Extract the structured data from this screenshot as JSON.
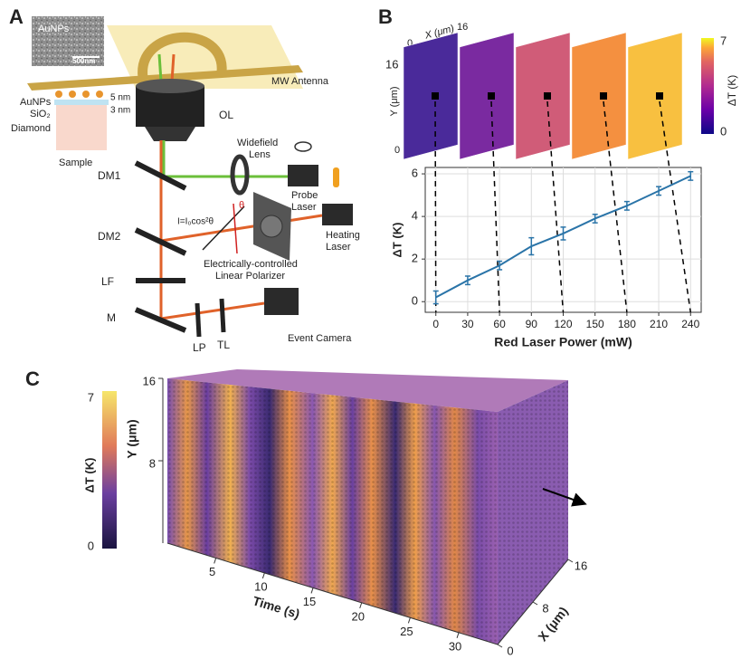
{
  "panel_a": {
    "label": "A",
    "sem_title": "AuNPs",
    "scale_bar": "500nm",
    "antenna": "MW Antenna",
    "layers": [
      "AuNPs",
      "SiO₂",
      "Diamond"
    ],
    "thickness": [
      "5 nm",
      "3 nm"
    ],
    "sample": "Sample",
    "objective": "OL",
    "optics": {
      "dm1": "DM1",
      "dm2": "DM2",
      "lf": "LF",
      "m": "M",
      "lp": "LP",
      "tl": "TL"
    },
    "widefield_lens": [
      "Widefield",
      "Lens"
    ],
    "probe_laser": [
      "Probe",
      "Laser"
    ],
    "heating_laser": [
      "Heating",
      "Laser"
    ],
    "malus": "I=I₀cos²θ",
    "theta": "θ",
    "polarizer": [
      "Electrically-controlled",
      "Linear Polarizer"
    ],
    "camera": "Event Camera"
  },
  "panel_b": {
    "label": "B",
    "map_x_ticks": [
      "0",
      "16"
    ],
    "map_x_label": "X (μm)",
    "map_y_ticks": [
      "16",
      "0"
    ],
    "map_y_label": "Y (μm)",
    "colorbar": {
      "label": "ΔT (K)",
      "ticks": [
        0,
        7
      ]
    }
  },
  "chart_data": {
    "type": "line",
    "x": [
      0,
      30,
      60,
      90,
      120,
      150,
      180,
      210,
      240
    ],
    "series": [
      {
        "values": [
          0.2,
          1.0,
          1.7,
          2.6,
          3.2,
          3.9,
          4.5,
          5.2,
          5.9
        ],
        "errors": [
          0.3,
          0.2,
          0.2,
          0.4,
          0.3,
          0.2,
          0.2,
          0.2,
          0.2
        ],
        "color": "#2a74a8"
      }
    ],
    "xlabel": "Red Laser Power (mW)",
    "ylabel": "ΔT (K)",
    "xlim": [
      -10,
      250
    ],
    "ylim": [
      -0.5,
      6.3
    ],
    "xticks": [
      0,
      30,
      60,
      90,
      120,
      150,
      180,
      210,
      240
    ],
    "yticks": [
      0,
      2,
      4,
      6
    ],
    "grid": true
  },
  "panel_c": {
    "label": "C",
    "time_label": "Time (s)",
    "time_ticks": [
      5,
      10,
      15,
      20,
      25,
      30
    ],
    "time_lim": [
      0,
      34
    ],
    "y_label": "Y (μm)",
    "y_ticks": [
      8,
      16
    ],
    "ylim": [
      0,
      16
    ],
    "x_label": "X (μm)",
    "x_ticks": [
      0,
      8,
      16
    ],
    "xlim": [
      0,
      16
    ],
    "colorbar": {
      "label": "ΔT (K)",
      "ticks": [
        0,
        7
      ]
    }
  }
}
